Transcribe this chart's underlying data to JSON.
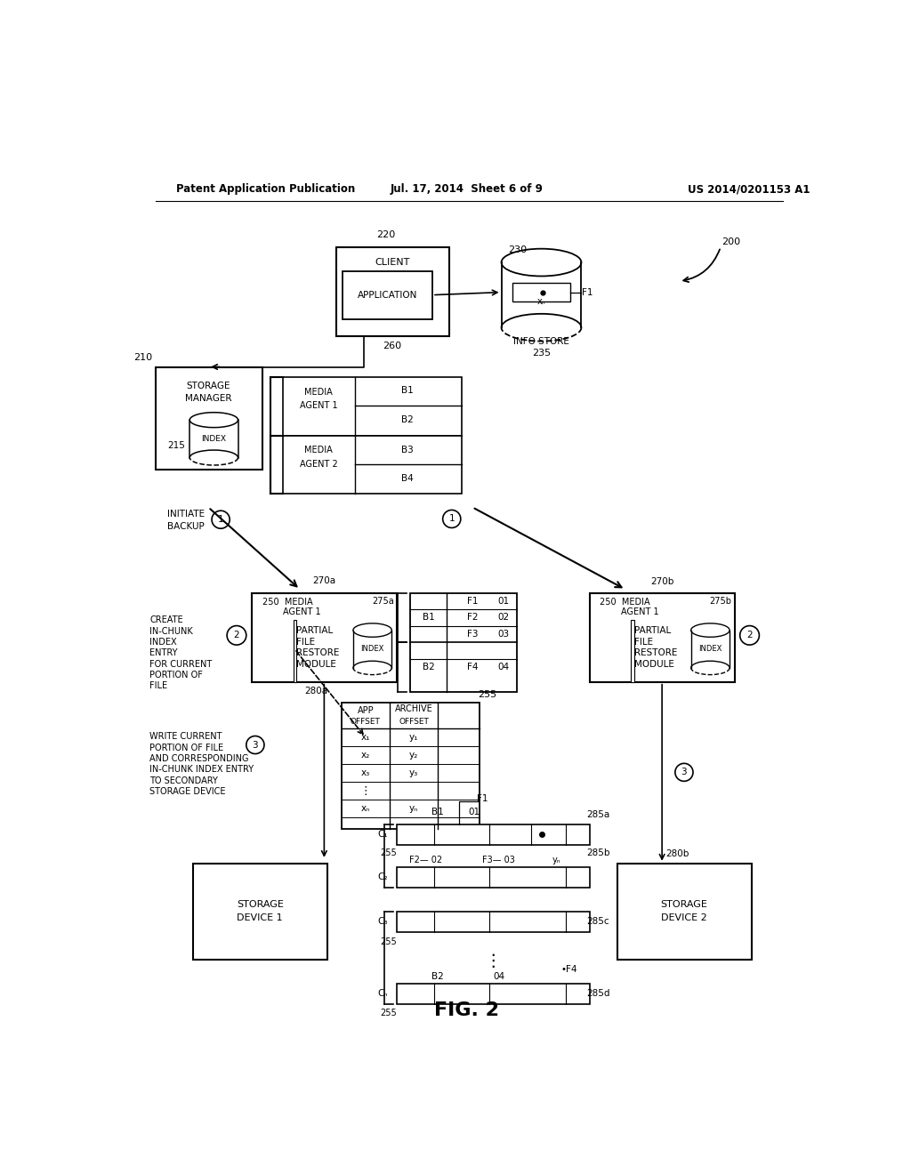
{
  "bg_color": "#ffffff",
  "header_left": "Patent Application Publication",
  "header_mid": "Jul. 17, 2014  Sheet 6 of 9",
  "header_right": "US 2014/0201153 A1",
  "fig_label": "FIG. 2"
}
